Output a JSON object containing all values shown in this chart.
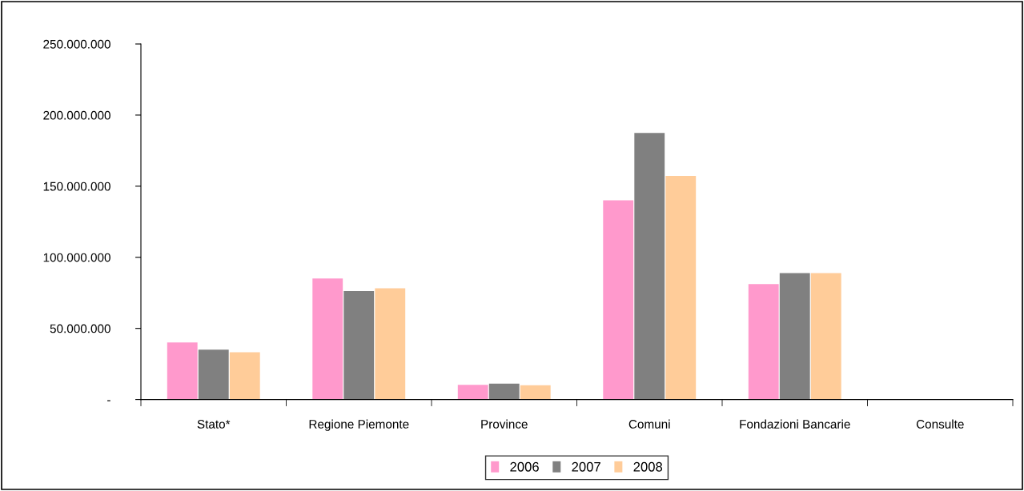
{
  "chart_data": {
    "type": "bar",
    "categories": [
      "Stato*",
      "Regione Piemonte",
      "Province",
      "Comuni",
      "Fondazioni Bancarie",
      "Consulte"
    ],
    "series": [
      {
        "name": "2006",
        "color": "#ff99cc",
        "values": [
          40100000,
          85100000,
          10300000,
          140000000,
          81100000,
          0
        ]
      },
      {
        "name": "2007",
        "color": "#808080",
        "values": [
          35100000,
          76300000,
          11200000,
          187500000,
          88900000,
          0
        ]
      },
      {
        "name": "2008",
        "color": "#ffcc99",
        "values": [
          33300000,
          78200000,
          10000000,
          157200000,
          88900000,
          0
        ]
      }
    ],
    "ylim": [
      0,
      250000000
    ],
    "yticks": [
      {
        "value": 0,
        "label": "-"
      },
      {
        "value": 50000000,
        "label": "50.000.000"
      },
      {
        "value": 100000000,
        "label": "100.000.000"
      },
      {
        "value": 150000000,
        "label": "150.000.000"
      },
      {
        "value": 200000000,
        "label": "200.000.000"
      },
      {
        "value": 250000000,
        "label": "250.000.000"
      }
    ],
    "grid": false,
    "legend": "bottom"
  }
}
